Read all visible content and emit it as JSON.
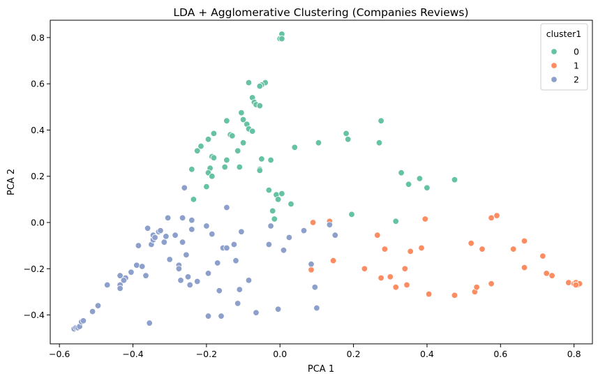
{
  "chart_data": {
    "type": "scatter",
    "title": "LDA + Agglomerative Clustering (Companies Reviews)",
    "xlabel": "PCA 1",
    "ylabel": "PCA 2",
    "xlim": [
      -0.625,
      0.85
    ],
    "ylim": [
      -0.525,
      0.875
    ],
    "xticks": [
      "−0.6",
      "−0.4",
      "−0.2",
      "0.0",
      "0.2",
      "0.4",
      "0.6",
      "0.8"
    ],
    "xtick_values": [
      -0.6,
      -0.4,
      -0.2,
      0.0,
      0.2,
      0.4,
      0.6,
      0.8
    ],
    "yticks": [
      "−0.4",
      "−0.2",
      "0.0",
      "0.2",
      "0.4",
      "0.6",
      "0.8"
    ],
    "ytick_values": [
      -0.4,
      -0.2,
      0.0,
      0.2,
      0.4,
      0.6,
      0.8
    ],
    "grid": false,
    "legend": {
      "title": "cluster1",
      "position": "top-right"
    },
    "series": [
      {
        "name": "0",
        "color": "#66c2a5",
        "points": [
          [
            0.005,
            0.815
          ],
          [
            0.0,
            0.795
          ],
          [
            0.005,
            0.795
          ],
          [
            -0.085,
            0.605
          ],
          [
            -0.04,
            0.605
          ],
          [
            -0.05,
            0.595
          ],
          [
            -0.055,
            0.59
          ],
          [
            -0.075,
            0.54
          ],
          [
            -0.07,
            0.52
          ],
          [
            -0.065,
            0.51
          ],
          [
            -0.055,
            0.505
          ],
          [
            -0.105,
            0.475
          ],
          [
            -0.1,
            0.445
          ],
          [
            -0.09,
            0.425
          ],
          [
            -0.145,
            0.44
          ],
          [
            -0.18,
            0.385
          ],
          [
            -0.135,
            0.38
          ],
          [
            -0.13,
            0.375
          ],
          [
            -0.085,
            0.405
          ],
          [
            -0.075,
            0.395
          ],
          [
            -0.195,
            0.36
          ],
          [
            -0.215,
            0.33
          ],
          [
            -0.225,
            0.31
          ],
          [
            -0.1,
            0.345
          ],
          [
            -0.115,
            0.31
          ],
          [
            -0.185,
            0.285
          ],
          [
            -0.18,
            0.28
          ],
          [
            -0.145,
            0.27
          ],
          [
            -0.05,
            0.275
          ],
          [
            -0.025,
            0.27
          ],
          [
            -0.24,
            0.23
          ],
          [
            -0.19,
            0.235
          ],
          [
            -0.195,
            0.215
          ],
          [
            -0.185,
            0.2
          ],
          [
            -0.15,
            0.24
          ],
          [
            -0.11,
            0.24
          ],
          [
            -0.055,
            0.23
          ],
          [
            -0.055,
            0.225
          ],
          [
            -0.2,
            0.155
          ],
          [
            -0.235,
            0.1
          ],
          [
            -0.03,
            0.14
          ],
          [
            -0.01,
            0.12
          ],
          [
            0.005,
            0.125
          ],
          [
            -0.005,
            0.1
          ],
          [
            0.03,
            0.08
          ],
          [
            -0.02,
            0.05
          ],
          [
            -0.015,
            0.015
          ],
          [
            0.04,
            0.325
          ],
          [
            0.105,
            0.345
          ],
          [
            0.275,
            0.44
          ],
          [
            0.18,
            0.385
          ],
          [
            0.185,
            0.36
          ],
          [
            0.27,
            0.345
          ],
          [
            0.33,
            0.215
          ],
          [
            0.38,
            0.19
          ],
          [
            0.35,
            0.165
          ],
          [
            0.4,
            0.15
          ],
          [
            0.475,
            0.185
          ],
          [
            0.195,
            0.035
          ],
          [
            0.315,
            0.005
          ]
        ]
      },
      {
        "name": "1",
        "color": "#fc8d62",
        "points": [
          [
            0.09,
            0.0
          ],
          [
            0.135,
            0.005
          ],
          [
            0.085,
            -0.205
          ],
          [
            0.145,
            -0.165
          ],
          [
            0.265,
            -0.055
          ],
          [
            0.285,
            -0.115
          ],
          [
            0.23,
            -0.2
          ],
          [
            0.275,
            -0.24
          ],
          [
            0.3,
            -0.235
          ],
          [
            0.315,
            -0.28
          ],
          [
            0.34,
            -0.2
          ],
          [
            0.345,
            -0.27
          ],
          [
            0.355,
            -0.125
          ],
          [
            0.385,
            -0.11
          ],
          [
            0.395,
            0.015
          ],
          [
            0.405,
            -0.31
          ],
          [
            0.475,
            -0.315
          ],
          [
            0.52,
            -0.09
          ],
          [
            0.53,
            -0.3
          ],
          [
            0.535,
            -0.28
          ],
          [
            0.55,
            -0.115
          ],
          [
            0.575,
            -0.265
          ],
          [
            0.575,
            0.02
          ],
          [
            0.59,
            0.03
          ],
          [
            0.635,
            -0.115
          ],
          [
            0.665,
            -0.08
          ],
          [
            0.665,
            -0.195
          ],
          [
            0.715,
            -0.145
          ],
          [
            0.725,
            -0.22
          ],
          [
            0.74,
            -0.23
          ],
          [
            0.785,
            -0.26
          ],
          [
            0.8,
            -0.265
          ],
          [
            0.805,
            -0.26
          ],
          [
            0.81,
            -0.27
          ],
          [
            0.815,
            -0.265
          ],
          [
            0.805,
            -0.27
          ]
        ]
      },
      {
        "name": "2",
        "color": "#8da0cb",
        "points": [
          [
            -0.56,
            -0.46
          ],
          [
            -0.555,
            -0.455
          ],
          [
            -0.55,
            -0.455
          ],
          [
            -0.545,
            -0.45
          ],
          [
            -0.54,
            -0.43
          ],
          [
            -0.535,
            -0.425
          ],
          [
            -0.51,
            -0.385
          ],
          [
            -0.495,
            -0.36
          ],
          [
            -0.47,
            -0.27
          ],
          [
            -0.435,
            -0.27
          ],
          [
            -0.435,
            -0.285
          ],
          [
            -0.435,
            -0.23
          ],
          [
            -0.42,
            -0.24
          ],
          [
            -0.425,
            -0.25
          ],
          [
            -0.405,
            -0.215
          ],
          [
            -0.39,
            -0.185
          ],
          [
            -0.385,
            -0.1
          ],
          [
            -0.375,
            -0.19
          ],
          [
            -0.365,
            -0.23
          ],
          [
            -0.355,
            -0.435
          ],
          [
            -0.36,
            -0.025
          ],
          [
            -0.35,
            -0.095
          ],
          [
            -0.345,
            -0.075
          ],
          [
            -0.345,
            -0.055
          ],
          [
            -0.34,
            -0.065
          ],
          [
            -0.33,
            -0.04
          ],
          [
            -0.325,
            -0.035
          ],
          [
            -0.315,
            -0.085
          ],
          [
            -0.31,
            -0.06
          ],
          [
            -0.305,
            0.02
          ],
          [
            -0.3,
            -0.16
          ],
          [
            -0.285,
            -0.055
          ],
          [
            -0.275,
            -0.185
          ],
          [
            -0.275,
            -0.2
          ],
          [
            -0.27,
            -0.25
          ],
          [
            -0.265,
            -0.085
          ],
          [
            -0.265,
            0.02
          ],
          [
            -0.26,
            0.15
          ],
          [
            -0.255,
            -0.14
          ],
          [
            -0.25,
            -0.235
          ],
          [
            -0.245,
            -0.27
          ],
          [
            -0.24,
            -0.03
          ],
          [
            -0.24,
            0.01
          ],
          [
            -0.225,
            -0.255
          ],
          [
            -0.2,
            -0.015
          ],
          [
            -0.195,
            -0.405
          ],
          [
            -0.195,
            -0.22
          ],
          [
            -0.185,
            -0.05
          ],
          [
            -0.17,
            -0.175
          ],
          [
            -0.165,
            -0.295
          ],
          [
            -0.16,
            -0.405
          ],
          [
            -0.155,
            -0.11
          ],
          [
            -0.145,
            -0.11
          ],
          [
            -0.145,
            0.065
          ],
          [
            -0.125,
            -0.095
          ],
          [
            -0.12,
            -0.165
          ],
          [
            -0.115,
            -0.35
          ],
          [
            -0.11,
            -0.29
          ],
          [
            -0.105,
            -0.04
          ],
          [
            -0.085,
            -0.25
          ],
          [
            -0.065,
            -0.39
          ],
          [
            -0.03,
            -0.095
          ],
          [
            -0.025,
            -0.015
          ],
          [
            -0.005,
            -0.375
          ],
          [
            0.01,
            -0.12
          ],
          [
            0.025,
            -0.065
          ],
          [
            0.065,
            -0.035
          ],
          [
            0.085,
            -0.18
          ],
          [
            0.095,
            -0.28
          ],
          [
            0.1,
            -0.37
          ],
          [
            0.135,
            -0.01
          ],
          [
            0.15,
            -0.055
          ]
        ]
      }
    ]
  }
}
